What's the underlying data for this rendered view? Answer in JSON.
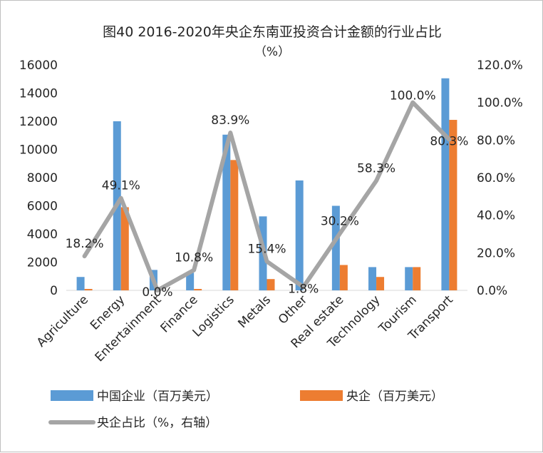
{
  "chart_data": {
    "type": "bar",
    "title": "图40 2016-2020年央企东南亚投资合计金额的行业占比",
    "subtitle": "（%）",
    "categories": [
      "Agriculture",
      "Energy",
      "Entertainment",
      "Finance",
      "Logistics",
      "Metals",
      "Other",
      "Real estate",
      "Technology",
      "Tourism",
      "Transport"
    ],
    "series": [
      {
        "name": "中国企业（百万美元）",
        "type": "bar",
        "axis": "left",
        "color": "#5b9bd5",
        "values": [
          950,
          12000,
          1450,
          1250,
          11050,
          5250,
          7800,
          6000,
          1650,
          1650,
          15050
        ]
      },
      {
        "name": "央企（百万美元）",
        "type": "bar",
        "axis": "left",
        "color": "#ed7d31",
        "values": [
          100,
          5900,
          0,
          100,
          9250,
          800,
          0,
          1800,
          950,
          1650,
          12100
        ]
      },
      {
        "name": "央企占比（%，右轴）",
        "type": "line",
        "axis": "right",
        "color": "#a5a5a5",
        "values": [
          18.2,
          49.1,
          0.0,
          10.8,
          83.9,
          15.4,
          1.8,
          30.2,
          58.3,
          100.0,
          80.3
        ],
        "labels": [
          "18.2%",
          "49.1%",
          "0.0%",
          "10.8%",
          "83.9%",
          "15.4%",
          "1.8%",
          "30.2%",
          "58.3%",
          "100.0%",
          "80.3%"
        ]
      }
    ],
    "y_left": {
      "min": 0,
      "max": 16000,
      "ticks": [
        "0",
        "2000",
        "4000",
        "6000",
        "8000",
        "10000",
        "12000",
        "14000",
        "16000"
      ]
    },
    "y_right": {
      "min": 0,
      "max": 120,
      "ticks": [
        "0.0%",
        "20.0%",
        "40.0%",
        "60.0%",
        "80.0%",
        "100.0%",
        "120.0%"
      ]
    },
    "grid": false,
    "legend": "bottom"
  }
}
